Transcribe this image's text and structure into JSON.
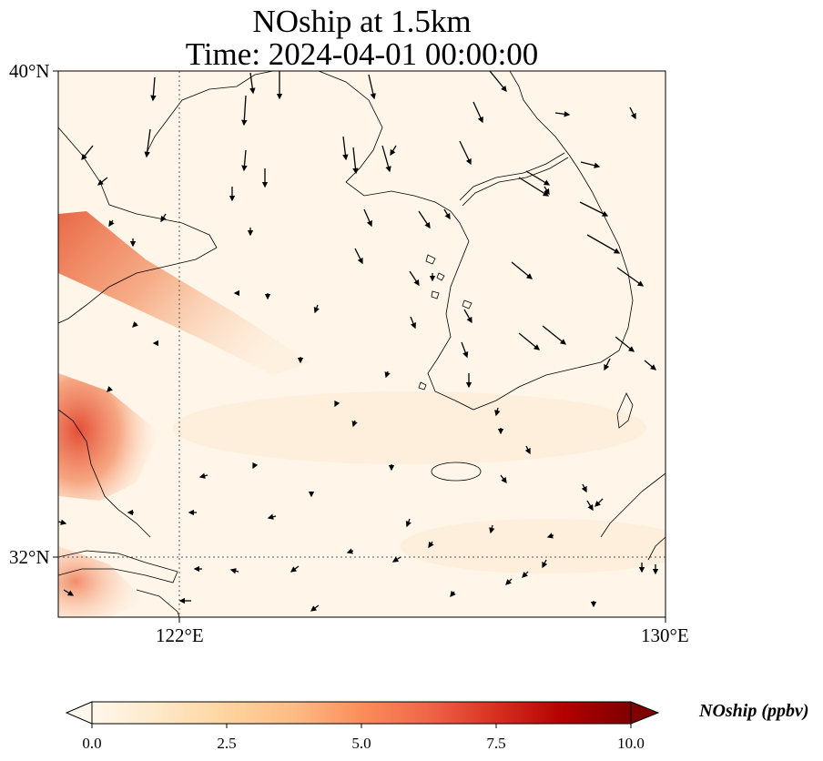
{
  "title": {
    "line1": "NOship at 1.5km",
    "line2": "Time: 2024-04-01 00:00:00"
  },
  "map": {
    "lat_labels": [
      "40°N",
      "32°N"
    ],
    "lon_labels": [
      "122°E",
      "130°E"
    ],
    "extent": {
      "lon": [
        120,
        130
      ],
      "lat": [
        31,
        40
      ]
    },
    "gridlines": {
      "lon": [
        122
      ],
      "lat": [
        32
      ]
    },
    "plume_color": "#e2452d",
    "land_outline_color": "#000000"
  },
  "colorbar": {
    "title": "NOship (ppbv)",
    "ticks": [
      "0.0",
      "2.5",
      "5.0",
      "7.5",
      "10.0"
    ],
    "range": [
      0,
      10
    ],
    "colormap": "OrRd",
    "stops": [
      "#fff7ec",
      "#fee8c8",
      "#fdd49e",
      "#fdbb84",
      "#fc8d59",
      "#ef6548",
      "#d7301f",
      "#b30000",
      "#7f0000"
    ],
    "extend": "both"
  }
}
